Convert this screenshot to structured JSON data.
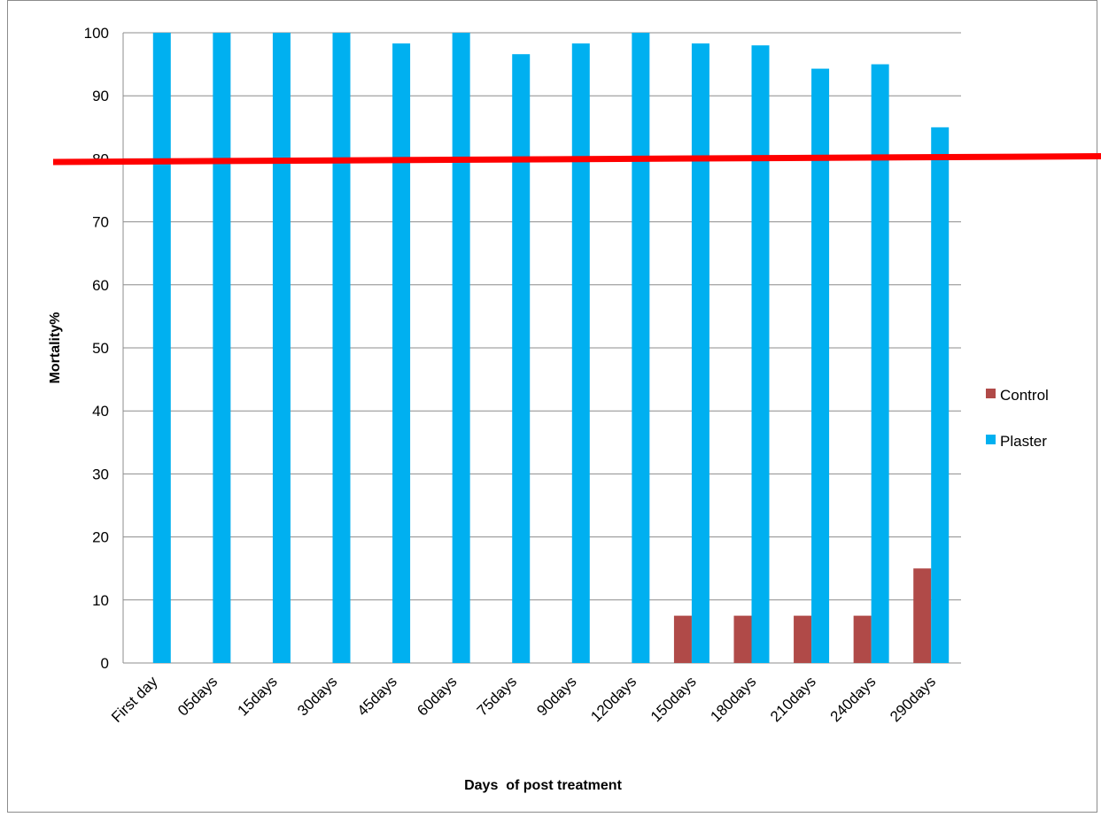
{
  "chart_data": {
    "type": "bar",
    "xlabel": "Days  of post treatment",
    "ylabel": "Mortality%",
    "ylim": [
      0,
      100
    ],
    "yticks": [
      0,
      10,
      20,
      30,
      40,
      50,
      60,
      70,
      80,
      90,
      100
    ],
    "grid": true,
    "legend_position": "right",
    "categories": [
      "First day",
      "05days",
      "15days",
      "30days",
      "45days",
      "60days",
      "75days",
      "90days",
      "120days",
      "150days",
      "180days",
      "210days",
      "240days",
      "290days"
    ],
    "series": [
      {
        "name": "Control",
        "color": "#b04a48",
        "values": [
          0,
          0,
          0,
          0,
          0,
          0,
          0,
          0,
          0,
          7.5,
          7.5,
          7.5,
          7.5,
          15
        ]
      },
      {
        "name": "Plaster",
        "color": "#00b0f0",
        "values": [
          100,
          100,
          100,
          100,
          98.3,
          100,
          96.6,
          98.3,
          100,
          98.3,
          98,
          94.3,
          95,
          85
        ]
      }
    ],
    "annotations": [
      {
        "type": "threshold-line",
        "color": "#ff0000",
        "y_start": 79.5,
        "y_end": 80.4
      }
    ]
  }
}
